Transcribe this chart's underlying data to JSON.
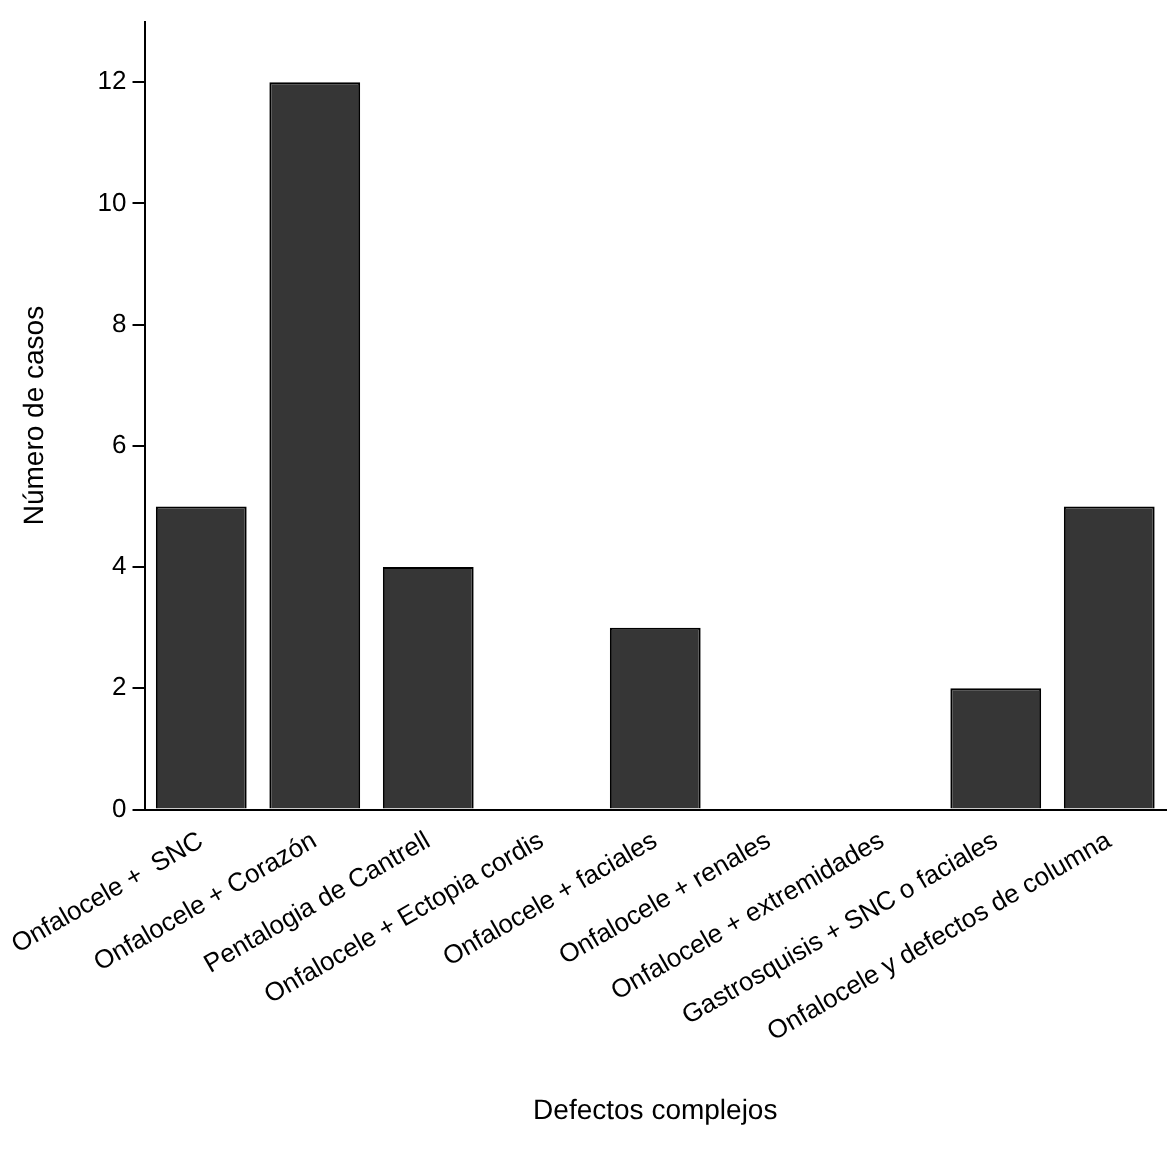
{
  "chart_data": {
    "type": "bar",
    "xlabel": "Defectos complejos",
    "ylabel": "Número de casos",
    "categories": [
      "Onfalocele +  SNC",
      "Onfalocele + Corazón",
      "Pentalogia de Cantrell",
      "Onfalocele + Ectopia cordis",
      "Onfalocele + faciales",
      "Onfalocele + renales",
      "Onfalocele + extremidades",
      "Gastrosquisis + SNC o faciales",
      "Onfalocele y defectos de columna"
    ],
    "values": [
      5,
      12,
      4,
      0,
      3,
      0,
      0,
      2,
      5
    ],
    "color": "#363636",
    "ylim": [
      0,
      13
    ],
    "yticks": [
      0,
      2,
      4,
      6,
      8,
      10,
      12
    ],
    "grid": false,
    "legend": false
  }
}
